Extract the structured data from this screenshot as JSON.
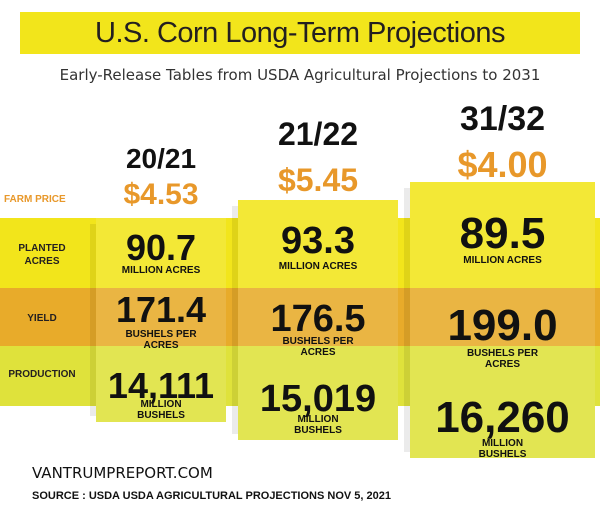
{
  "title": "U.S. Corn Long-Term Projections",
  "subtitle": "Early-Release Tables from USDA Agricultural Projections to 2031",
  "row_labels": {
    "farm_price": "FARM PRICE",
    "planted": "PLANTED\nACRES",
    "yield": "YIELD",
    "production": "PRODUCTION"
  },
  "colors": {
    "yellow": "#f2e51b",
    "orange": "#e8ab2a",
    "lime": "#dfe23b",
    "price": "#e8982a"
  },
  "chart_data": {
    "type": "table",
    "title": "U.S. Corn Long-Term Projections",
    "columns": [
      {
        "year": "20/21",
        "farm_price": "$4.53",
        "planted": "90.7",
        "planted_unit": "MILLION ACRES",
        "yield": "171.4",
        "yield_unit": "BUSHELS PER\nACRES",
        "production": "14,111",
        "production_unit": "MILLION\nBUSHELS"
      },
      {
        "year": "21/22",
        "farm_price": "$5.45",
        "planted": "93.3",
        "planted_unit": "MILLION ACRES",
        "yield": "176.5",
        "yield_unit": "BUSHELS PER\nACRES",
        "production": "15,019",
        "production_unit": "MILLION\nBUSHELS"
      },
      {
        "year": "31/32",
        "farm_price": "$4.00",
        "planted": "89.5",
        "planted_unit": "MILLION ACRES",
        "yield": "199.0",
        "yield_unit": "BUSHELS PER\nACRES",
        "production": "16,260",
        "production_unit": "MILLION\nBUSHELS"
      }
    ]
  },
  "footer": {
    "site": "VANTRUMPREPORT.COM",
    "source": "SOURCE : USDA USDA AGRICULTURAL PROJECTIONS NOV 5, 2021"
  }
}
